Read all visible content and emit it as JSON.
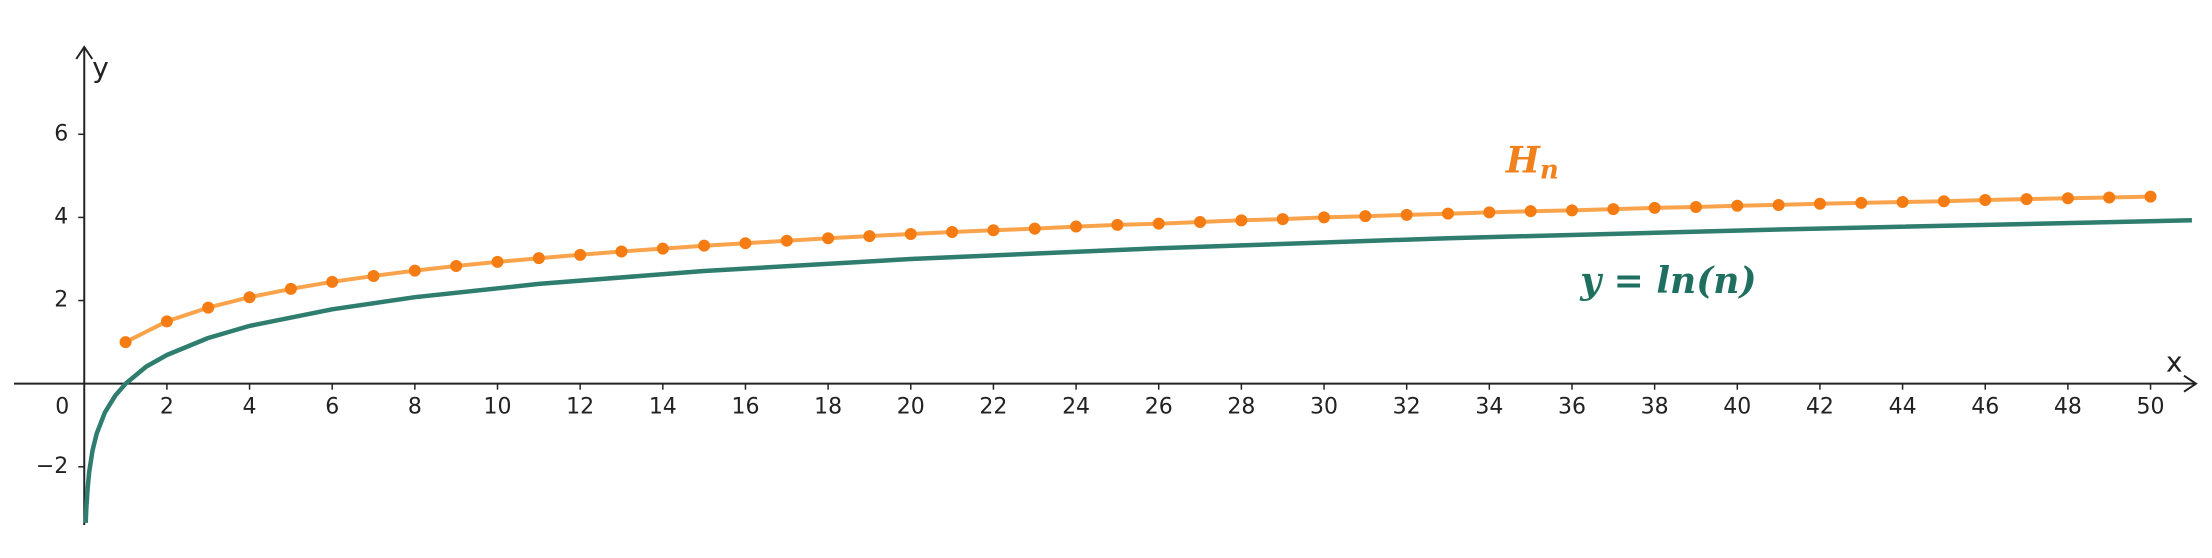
{
  "chart_data": {
    "type": "line",
    "x_label": "x",
    "y_label": "y",
    "annotations": [
      {
        "text": "H",
        "sub": "n",
        "color": "#f0811c"
      },
      {
        "text": "y = ln(n)",
        "color": "#1f6f61"
      }
    ],
    "series": [
      {
        "color": "#f9a44c",
        "marker_color": "#f57c12",
        "markers": true,
        "x": [
          1,
          2,
          3,
          4,
          5,
          6,
          7,
          8,
          9,
          10,
          11,
          12,
          13,
          14,
          15,
          16,
          17,
          18,
          19,
          20,
          21,
          22,
          23,
          24,
          25,
          26,
          27,
          28,
          29,
          30,
          31,
          32,
          33,
          34,
          35,
          36,
          37,
          38,
          39,
          40,
          41,
          42,
          43,
          44,
          45,
          46,
          47,
          48,
          49,
          50
        ],
        "values": [
          1,
          1.5,
          1.83,
          2.08,
          2.28,
          2.45,
          2.59,
          2.72,
          2.83,
          2.93,
          3.02,
          3.1,
          3.18,
          3.25,
          3.32,
          3.38,
          3.44,
          3.5,
          3.55,
          3.6,
          3.65,
          3.69,
          3.73,
          3.78,
          3.82,
          3.85,
          3.89,
          3.93,
          3.96,
          4.0,
          4.03,
          4.06,
          4.09,
          4.12,
          4.15,
          4.17,
          4.2,
          4.23,
          4.25,
          4.28,
          4.3,
          4.33,
          4.35,
          4.37,
          4.39,
          4.42,
          4.44,
          4.46,
          4.48,
          4.5
        ]
      },
      {
        "color": "#2e7d6e",
        "markers": false,
        "x": [
          0.035,
          0.05,
          0.08,
          0.12,
          0.2,
          0.3,
          0.5,
          0.75,
          1,
          1.5,
          2,
          3,
          4,
          6,
          8,
          11,
          15,
          20,
          26,
          33,
          41,
          51
        ],
        "values": [
          -3.35,
          -3.0,
          -2.53,
          -2.12,
          -1.61,
          -1.2,
          -0.69,
          -0.29,
          0,
          0.41,
          0.69,
          1.1,
          1.39,
          1.79,
          2.08,
          2.4,
          2.71,
          3.0,
          3.26,
          3.5,
          3.71,
          3.93
        ]
      }
    ],
    "xlim": [
      -1.7,
      51.1
    ],
    "ylim": [
      -3.4,
      8.1
    ],
    "xticks": [
      0,
      2,
      4,
      6,
      8,
      10,
      12,
      14,
      16,
      18,
      20,
      22,
      24,
      26,
      28,
      30,
      32,
      34,
      36,
      38,
      40,
      42,
      44,
      46,
      48,
      50
    ],
    "yticks": [
      {
        "value": -2,
        "label": "−2"
      },
      2,
      4,
      6
    ]
  }
}
